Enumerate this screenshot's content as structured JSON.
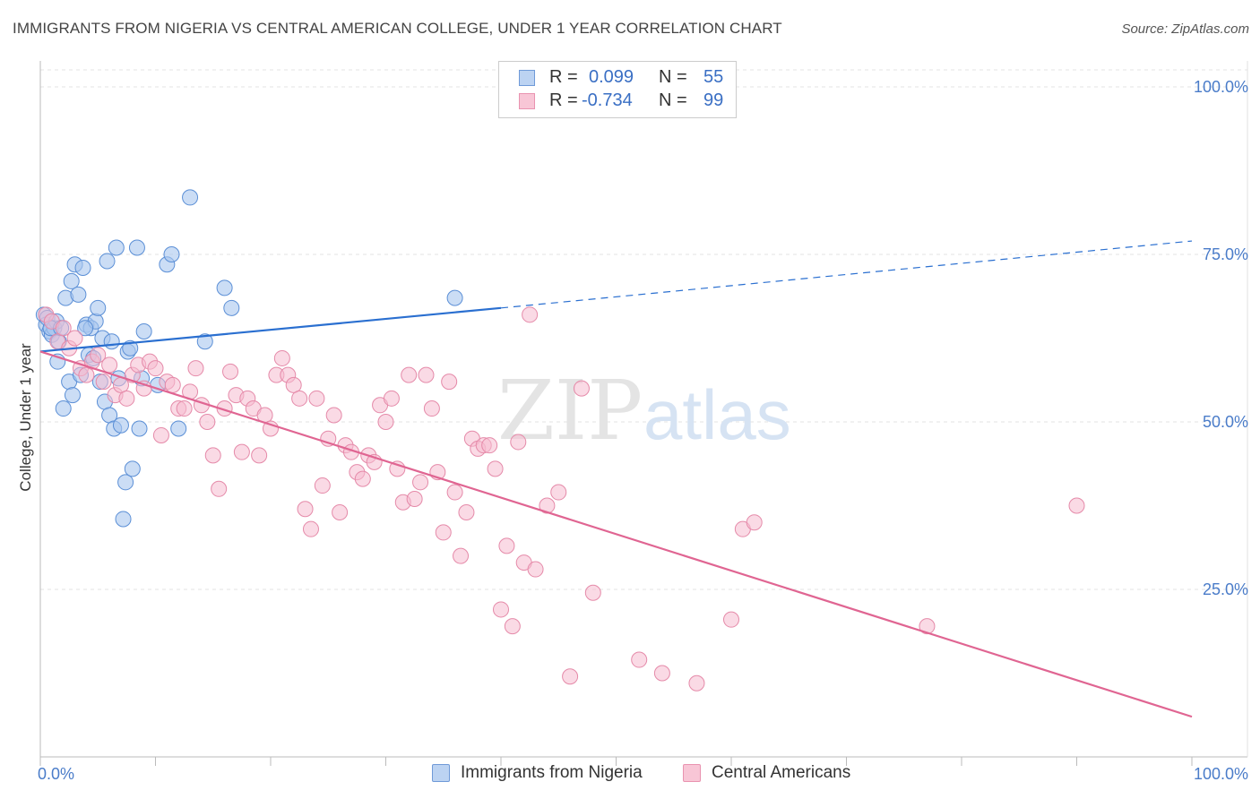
{
  "header": {
    "title": "IMMIGRANTS FROM NIGERIA VS CENTRAL AMERICAN COLLEGE, UNDER 1 YEAR CORRELATION CHART",
    "source": "Source: ZipAtlas.com"
  },
  "watermark": {
    "zip": "ZIP",
    "atlas": "atlas"
  },
  "legend": {
    "rows": [
      {
        "r_label": "R =",
        "r_value": "0.099",
        "n_label": "N =",
        "n_value": "55"
      },
      {
        "r_label": "R =",
        "r_value": "-0.734",
        "n_label": "N =",
        "n_value": "99"
      }
    ]
  },
  "bottom_legend": {
    "series1": "Immigrants from Nigeria",
    "series2": "Central Americans"
  },
  "colors": {
    "blue_fill": "#a9c6ee",
    "blue_stroke": "#5b8fd6",
    "blue_line": "#2a6fd0",
    "pink_fill": "#f6bcd0",
    "pink_stroke": "#e58aa9",
    "pink_line": "#e06592",
    "tick_color": "#4a7cc9",
    "grid": "#e3e3e3"
  },
  "chart_data": {
    "type": "scatter",
    "title": "IMMIGRANTS FROM NIGERIA VS CENTRAL AMERICAN COLLEGE, UNDER 1 YEAR CORRELATION CHART",
    "xlabel": "",
    "ylabel": "College, Under 1 year",
    "xlim": [
      0,
      100
    ],
    "ylim": [
      0,
      100
    ],
    "x_tick_labels": [
      "0.0%",
      "100.0%"
    ],
    "y_ticks": [
      {
        "value": 25,
        "label": "25.0%"
      },
      {
        "value": 50,
        "label": "50.0%"
      },
      {
        "value": 75,
        "label": "75.0%"
      },
      {
        "value": 100,
        "label": "100.0%"
      }
    ],
    "grid": true,
    "legend_position": "top-center",
    "series": [
      {
        "name": "Immigrants from Nigeria",
        "color": "#a9c6ee",
        "R": 0.099,
        "N": 55,
        "trend": {
          "x0": 0,
          "y0": 60.5,
          "x1": 40,
          "y1": 67.0,
          "dash_to_x": 100,
          "dash_to_y": 77.0
        },
        "points": [
          [
            0.3,
            66.0
          ],
          [
            0.5,
            64.5
          ],
          [
            0.6,
            65.5
          ],
          [
            0.8,
            63.5
          ],
          [
            1.0,
            63.0
          ],
          [
            1.2,
            64.0
          ],
          [
            1.4,
            65.0
          ],
          [
            1.5,
            59.0
          ],
          [
            1.6,
            62.0
          ],
          [
            2.0,
            52.0
          ],
          [
            2.2,
            68.5
          ],
          [
            2.5,
            56.0
          ],
          [
            2.7,
            71.0
          ],
          [
            2.8,
            54.0
          ],
          [
            3.0,
            73.5
          ],
          [
            3.3,
            69.0
          ],
          [
            3.5,
            57.0
          ],
          [
            3.7,
            73.0
          ],
          [
            4.0,
            64.5
          ],
          [
            4.2,
            60.0
          ],
          [
            4.4,
            64.0
          ],
          [
            4.6,
            59.5
          ],
          [
            4.8,
            65.0
          ],
          [
            5.0,
            67.0
          ],
          [
            5.2,
            56.0
          ],
          [
            5.4,
            62.5
          ],
          [
            5.6,
            53.0
          ],
          [
            5.8,
            74.0
          ],
          [
            6.0,
            51.0
          ],
          [
            6.2,
            62.0
          ],
          [
            6.4,
            49.0
          ],
          [
            6.6,
            76.0
          ],
          [
            6.8,
            56.5
          ],
          [
            7.0,
            49.5
          ],
          [
            7.2,
            35.5
          ],
          [
            7.4,
            41.0
          ],
          [
            7.6,
            60.5
          ],
          [
            7.8,
            61.0
          ],
          [
            8.0,
            43.0
          ],
          [
            8.4,
            76.0
          ],
          [
            8.6,
            49.0
          ],
          [
            8.8,
            56.5
          ],
          [
            9.0,
            63.5
          ],
          [
            10.2,
            55.5
          ],
          [
            11.0,
            73.5
          ],
          [
            11.4,
            75.0
          ],
          [
            12.0,
            49.0
          ],
          [
            13.0,
            83.5
          ],
          [
            14.3,
            62.0
          ],
          [
            16.0,
            70.0
          ],
          [
            16.6,
            67.0
          ],
          [
            36.0,
            68.5
          ],
          [
            0.9,
            64.0
          ],
          [
            1.8,
            64.0
          ],
          [
            3.9,
            64.0
          ]
        ]
      },
      {
        "name": "Central Americans",
        "color": "#f6bcd0",
        "R": -0.734,
        "N": 99,
        "trend": {
          "x0": 0,
          "y0": 60.5,
          "x1": 100,
          "y1": 6.0
        },
        "points": [
          [
            0.5,
            66.0
          ],
          [
            1.0,
            65.0
          ],
          [
            1.5,
            62.0
          ],
          [
            2.0,
            64.0
          ],
          [
            2.5,
            61.0
          ],
          [
            3.0,
            62.5
          ],
          [
            3.5,
            58.0
          ],
          [
            4.0,
            57.0
          ],
          [
            4.5,
            59.0
          ],
          [
            5.0,
            60.0
          ],
          [
            5.5,
            56.0
          ],
          [
            6.0,
            58.5
          ],
          [
            6.5,
            54.0
          ],
          [
            7.0,
            55.5
          ],
          [
            7.5,
            53.5
          ],
          [
            8.0,
            57.0
          ],
          [
            8.5,
            58.5
          ],
          [
            9.0,
            55.0
          ],
          [
            9.5,
            59.0
          ],
          [
            10.0,
            58.0
          ],
          [
            10.5,
            48.0
          ],
          [
            11.0,
            56.0
          ],
          [
            11.5,
            55.5
          ],
          [
            12.0,
            52.0
          ],
          [
            12.5,
            52.0
          ],
          [
            13.0,
            54.5
          ],
          [
            13.5,
            58.0
          ],
          [
            14.0,
            52.5
          ],
          [
            14.5,
            50.0
          ],
          [
            15.0,
            45.0
          ],
          [
            15.5,
            40.0
          ],
          [
            16.0,
            52.0
          ],
          [
            16.5,
            57.5
          ],
          [
            17.0,
            54.0
          ],
          [
            17.5,
            45.5
          ],
          [
            18.0,
            53.5
          ],
          [
            18.5,
            52.0
          ],
          [
            19.0,
            45.0
          ],
          [
            19.5,
            51.0
          ],
          [
            20.0,
            49.0
          ],
          [
            20.5,
            57.0
          ],
          [
            21.0,
            59.5
          ],
          [
            21.5,
            57.0
          ],
          [
            22.0,
            55.5
          ],
          [
            22.5,
            53.5
          ],
          [
            23.0,
            37.0
          ],
          [
            23.5,
            34.0
          ],
          [
            24.0,
            53.5
          ],
          [
            24.5,
            40.5
          ],
          [
            25.0,
            47.5
          ],
          [
            25.5,
            51.0
          ],
          [
            26.0,
            36.5
          ],
          [
            26.5,
            46.5
          ],
          [
            27.0,
            45.5
          ],
          [
            27.5,
            42.5
          ],
          [
            28.0,
            41.5
          ],
          [
            28.5,
            45.0
          ],
          [
            29.0,
            44.0
          ],
          [
            29.5,
            52.5
          ],
          [
            30.0,
            50.0
          ],
          [
            30.5,
            53.5
          ],
          [
            31.0,
            43.0
          ],
          [
            31.5,
            38.0
          ],
          [
            32.0,
            57.0
          ],
          [
            32.5,
            38.5
          ],
          [
            33.0,
            41.0
          ],
          [
            33.5,
            57.0
          ],
          [
            34.0,
            52.0
          ],
          [
            34.5,
            42.5
          ],
          [
            35.0,
            33.5
          ],
          [
            35.5,
            56.0
          ],
          [
            36.0,
            39.5
          ],
          [
            36.5,
            30.0
          ],
          [
            37.0,
            36.5
          ],
          [
            37.5,
            47.5
          ],
          [
            38.0,
            46.0
          ],
          [
            38.5,
            46.5
          ],
          [
            39.0,
            46.5
          ],
          [
            39.5,
            43.0
          ],
          [
            40.0,
            22.0
          ],
          [
            40.5,
            31.5
          ],
          [
            41.0,
            19.5
          ],
          [
            41.5,
            47.0
          ],
          [
            42.0,
            29.0
          ],
          [
            42.5,
            66.0
          ],
          [
            43.0,
            28.0
          ],
          [
            44.0,
            37.5
          ],
          [
            45.0,
            39.5
          ],
          [
            46.0,
            12.0
          ],
          [
            47.0,
            55.0
          ],
          [
            48.0,
            24.5
          ],
          [
            52.0,
            14.5
          ],
          [
            54.0,
            12.5
          ],
          [
            57.0,
            11.0
          ],
          [
            60.0,
            20.5
          ],
          [
            61.0,
            34.0
          ],
          [
            62.0,
            35.0
          ],
          [
            77.0,
            19.5
          ],
          [
            90.0,
            37.5
          ]
        ]
      }
    ]
  }
}
